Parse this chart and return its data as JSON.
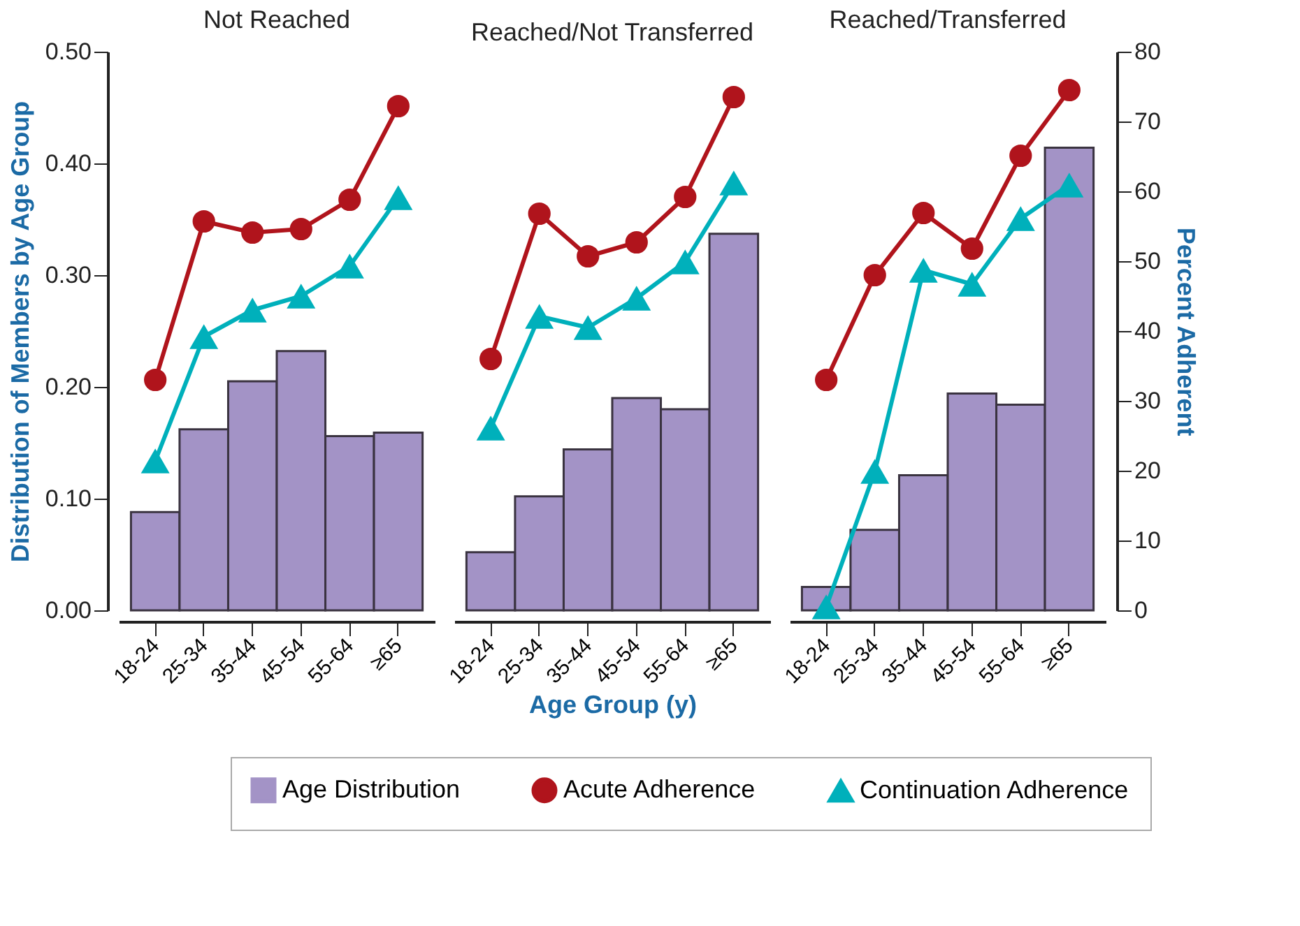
{
  "chart_data": [
    {
      "type": "bar",
      "title": "Not Reached",
      "ylabel": "Distribution of Members by Age Group",
      "categories": [
        "18-24",
        "25-34",
        "35-44",
        "45-54",
        "55-64",
        "≥65"
      ],
      "ylim": [
        0,
        0.5
      ],
      "yticks": [
        {
          "value": 0,
          "label": "0.00"
        },
        {
          "value": 0.1,
          "label": "0.10"
        },
        {
          "value": 0.2,
          "label": "0.20"
        },
        {
          "value": 0.3,
          "label": "0.30"
        },
        {
          "value": 0.4,
          "label": "0.40"
        },
        {
          "value": 0.5,
          "label": "0.50"
        }
      ],
      "y2lim": [
        0,
        80
      ],
      "tick_labels": "xy",
      "legend": "bottom",
      "series": [
        {
          "name": "Age Distribution",
          "color": "#a393c6",
          "values": [
            0.088,
            0.162,
            0.205,
            0.232,
            0.156,
            0.159
          ]
        },
        {
          "name": "Acute Adherence",
          "type": "line",
          "axis": "y2",
          "marker": "circle",
          "color": "#b0141c",
          "values": [
            33.0,
            55.7,
            54.1,
            54.6,
            58.8,
            72.2
          ]
        },
        {
          "name": "Continuation Adherence",
          "type": "line",
          "axis": "y2",
          "marker": "triangle",
          "color": "#00b0bb",
          "values": [
            21.4,
            39.2,
            43.0,
            45.0,
            49.3,
            59.1
          ]
        }
      ]
    },
    {
      "type": "bar",
      "title": "Reached/Not Transferred",
      "xlabel": "Age Group (y)",
      "categories": [
        "18-24",
        "25-34",
        "35-44",
        "45-54",
        "55-64",
        "≥65"
      ],
      "ylim": [
        0,
        0.5
      ],
      "y2lim": [
        0,
        80
      ],
      "tick_labels": "x",
      "series": [
        {
          "color": "#a393c6",
          "values": [
            0.052,
            0.102,
            0.144,
            0.19,
            0.18,
            0.337
          ]
        },
        {
          "type": "line",
          "axis": "y2",
          "marker": "circle",
          "color": "#b0141c",
          "values": [
            36.0,
            56.8,
            50.7,
            52.7,
            59.2,
            73.5
          ]
        },
        {
          "type": "line",
          "axis": "y2",
          "marker": "triangle",
          "color": "#00b0bb",
          "values": [
            26.1,
            42.1,
            40.5,
            44.7,
            49.9,
            61.2
          ]
        }
      ]
    },
    {
      "type": "bar",
      "title": "Reached/Transferred",
      "y2label": "Percent Adherent",
      "categories": [
        "18-24",
        "25-34",
        "35-44",
        "45-54",
        "55-64",
        "≥65"
      ],
      "ylim": [
        0,
        0.5
      ],
      "y2lim": [
        0,
        80
      ],
      "y2ticks": [
        0,
        10,
        20,
        30,
        40,
        50,
        60,
        70,
        80
      ],
      "tick_labels": "xy2",
      "series": [
        {
          "color": "#a393c6",
          "values": [
            0.021,
            0.072,
            0.121,
            0.194,
            0.184,
            0.414
          ]
        },
        {
          "type": "line",
          "axis": "y2",
          "marker": "circle",
          "color": "#b0141c",
          "values": [
            33.0,
            48.0,
            56.9,
            51.8,
            65.1,
            74.5
          ]
        },
        {
          "type": "line",
          "axis": "y2",
          "marker": "triangle",
          "color": "#00b0bb",
          "values": [
            0.5,
            19.9,
            48.7,
            46.7,
            56.1,
            60.9
          ]
        }
      ]
    }
  ]
}
